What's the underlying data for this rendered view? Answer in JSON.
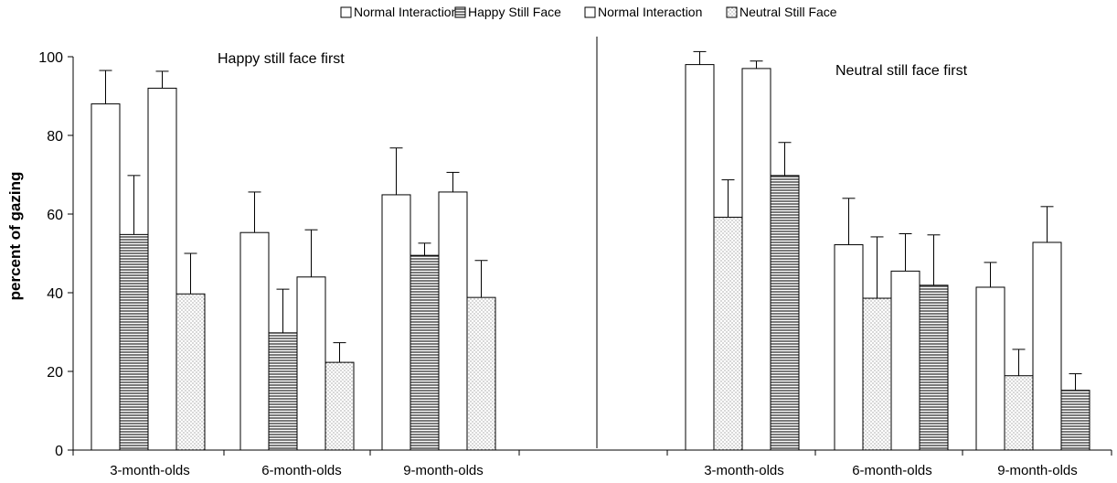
{
  "chart_data": {
    "type": "bar",
    "ylabel": "percent of gazing",
    "ylim": [
      0,
      100
    ],
    "yticks": [
      0,
      20,
      40,
      60,
      80,
      100
    ],
    "legend": {
      "placement": "top-center",
      "entries": [
        {
          "label": "Normal Interaction",
          "pattern": "plain"
        },
        {
          "label": "Happy Still Face",
          "pattern": "horizontal-lines"
        },
        {
          "label": "Normal Interaction",
          "pattern": "plain"
        },
        {
          "label": "Neutral Still Face",
          "pattern": "dots"
        }
      ]
    },
    "panels": [
      {
        "annotation": "Happy still face first",
        "categories": [
          "3-month-olds",
          "6-month-olds",
          "9-month-olds"
        ],
        "bar_patterns": [
          "plain",
          "horizontal-lines",
          "plain",
          "dots"
        ],
        "values": [
          [
            88.0,
            54.8,
            92.0,
            39.7
          ],
          [
            55.3,
            29.8,
            44.0,
            22.3
          ],
          [
            64.9,
            49.5,
            65.6,
            38.8
          ]
        ],
        "errors": [
          [
            8.5,
            15.0,
            4.3,
            10.3
          ],
          [
            10.3,
            11.1,
            12.0,
            5.0
          ],
          [
            11.9,
            3.1,
            5.0,
            9.4
          ]
        ]
      },
      {
        "annotation": "Neutral still face first",
        "categories": [
          "3-month-olds",
          "6-month-olds",
          "9-month-olds"
        ],
        "bar_patterns": [
          "plain",
          "dots",
          "plain",
          "horizontal-lines"
        ],
        "values": [
          [
            98.0,
            59.2,
            97.0,
            69.8
          ],
          [
            52.2,
            38.6,
            45.5,
            41.9
          ],
          [
            41.4,
            18.9,
            52.8,
            15.2
          ]
        ],
        "errors": [
          [
            3.3,
            9.5,
            1.9,
            8.4
          ],
          [
            11.8,
            15.6,
            9.5,
            12.8
          ],
          [
            6.3,
            6.7,
            9.1,
            4.2
          ]
        ]
      }
    ]
  }
}
